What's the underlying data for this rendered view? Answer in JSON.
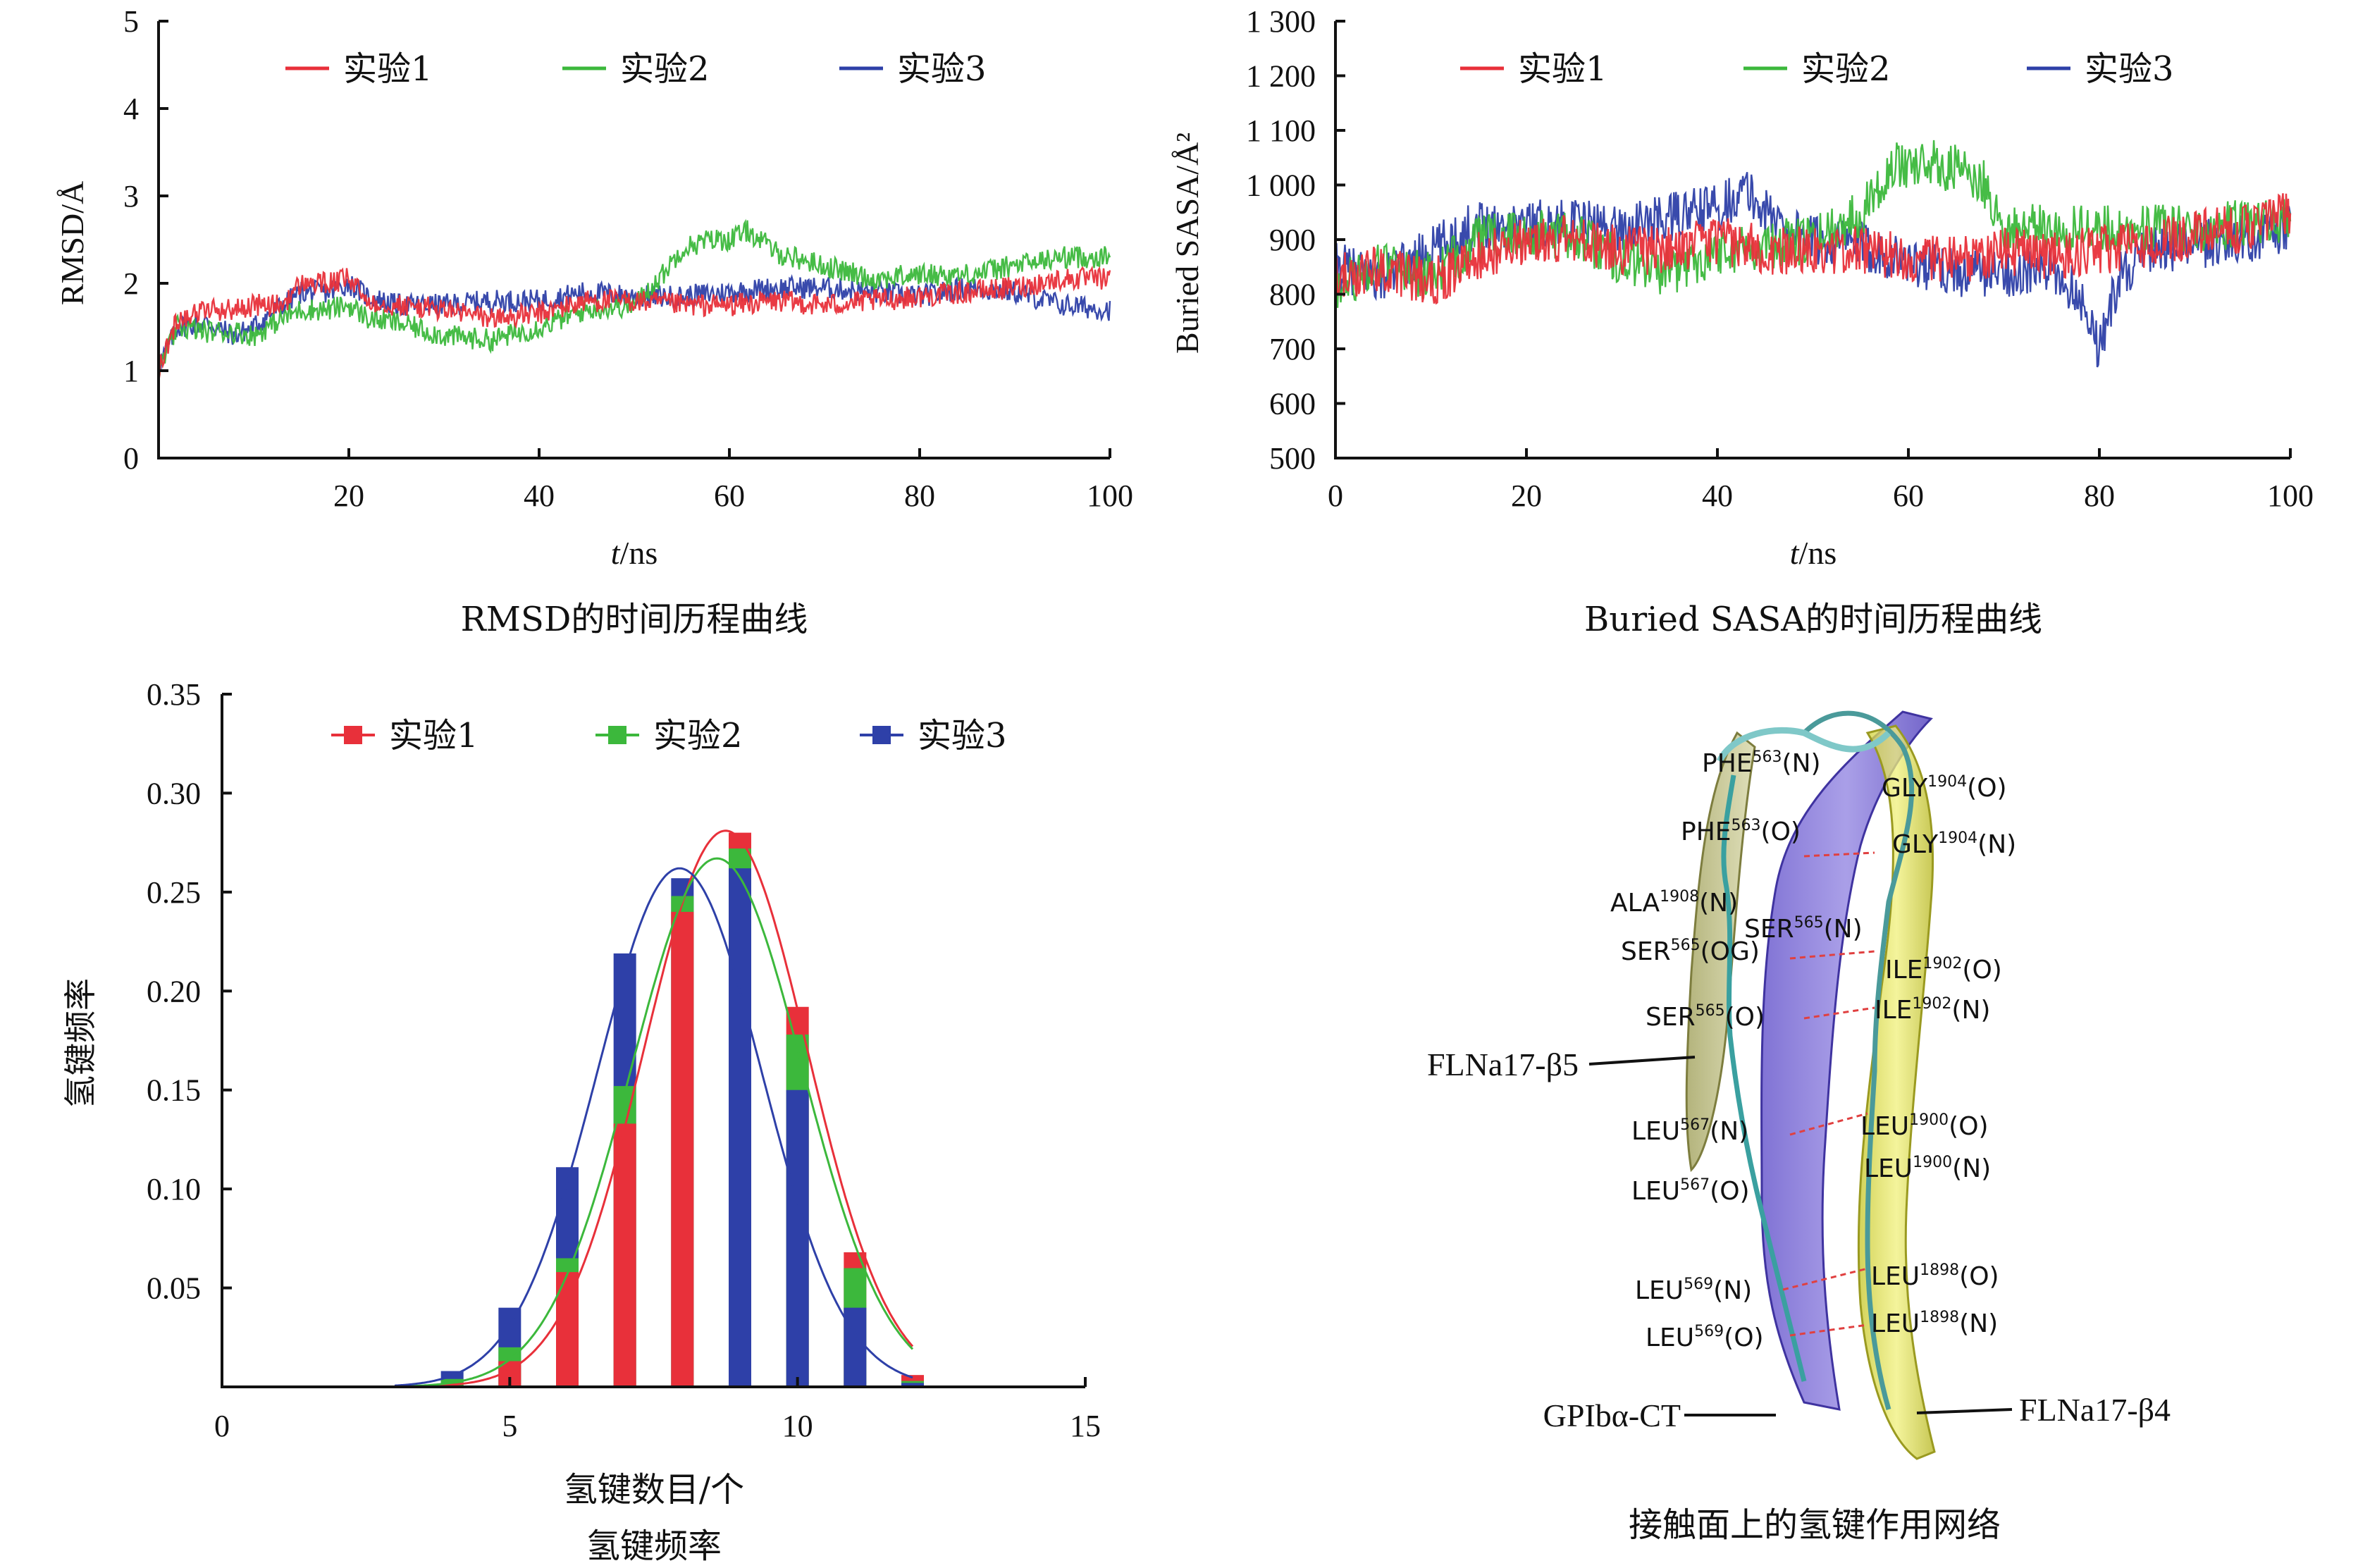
{
  "colors": {
    "exp1": "#e8303a",
    "exp2": "#3cb83c",
    "exp3": "#2e40a8"
  },
  "chart_data": [
    {
      "id": "rmsd",
      "type": "line",
      "caption": "RMSD的时间历程曲线",
      "xlabel_italic": "t",
      "xlabel_unit": "/ns",
      "ylabel": "RMSD/Å",
      "xlim": [
        0,
        100
      ],
      "ylim": [
        0,
        5
      ],
      "xticks": [
        20,
        40,
        60,
        80,
        100
      ],
      "yticks": [
        0,
        1,
        2,
        3,
        4,
        5
      ],
      "legend": [
        "实验1",
        "实验2",
        "实验3"
      ],
      "series": [
        {
          "name": "实验1",
          "x": [
            0,
            2,
            5,
            8,
            10,
            13,
            15,
            18,
            20,
            22,
            25,
            30,
            35,
            40,
            45,
            50,
            55,
            60,
            65,
            70,
            75,
            80,
            85,
            90,
            95,
            100
          ],
          "y": [
            1.0,
            1.6,
            1.7,
            1.7,
            1.75,
            1.75,
            2.0,
            2.0,
            2.05,
            1.8,
            1.75,
            1.7,
            1.6,
            1.65,
            1.8,
            1.8,
            1.75,
            1.75,
            1.8,
            1.75,
            1.8,
            1.85,
            1.9,
            1.95,
            2.05,
            2.05
          ]
        },
        {
          "name": "实验2",
          "x": [
            0,
            2,
            5,
            8,
            10,
            13,
            15,
            18,
            20,
            22,
            25,
            30,
            35,
            40,
            45,
            50,
            53,
            55,
            58,
            60,
            62,
            65,
            70,
            75,
            80,
            85,
            90,
            95,
            100
          ],
          "y": [
            1.0,
            1.5,
            1.45,
            1.45,
            1.4,
            1.6,
            1.7,
            1.7,
            1.75,
            1.6,
            1.55,
            1.4,
            1.35,
            1.5,
            1.7,
            1.75,
            2.1,
            2.4,
            2.5,
            2.5,
            2.6,
            2.35,
            2.2,
            2.05,
            2.1,
            2.1,
            2.2,
            2.3,
            2.3
          ]
        },
        {
          "name": "实验3",
          "x": [
            0,
            2,
            5,
            8,
            10,
            13,
            15,
            18,
            20,
            22,
            25,
            30,
            35,
            40,
            45,
            50,
            55,
            60,
            65,
            70,
            75,
            80,
            85,
            90,
            95,
            100
          ],
          "y": [
            1.05,
            1.5,
            1.55,
            1.4,
            1.5,
            1.75,
            1.9,
            1.9,
            2.0,
            1.85,
            1.75,
            1.75,
            1.8,
            1.8,
            1.9,
            1.85,
            1.85,
            1.9,
            1.95,
            1.95,
            1.9,
            1.85,
            1.95,
            1.9,
            1.75,
            1.7
          ]
        }
      ]
    },
    {
      "id": "sasa",
      "type": "line",
      "caption": "Buried SASA的时间历程曲线",
      "xlabel_italic": "t",
      "xlabel_unit": "/ns",
      "ylabel": "Buried SASA/Å²",
      "xlim": [
        0,
        100
      ],
      "ylim": [
        500,
        1300
      ],
      "xticks": [
        0,
        20,
        40,
        60,
        80,
        100
      ],
      "yticks": [
        500,
        600,
        700,
        800,
        900,
        1000,
        1100,
        1200,
        1300
      ],
      "yticklabels": [
        "500",
        "600",
        "700",
        "800",
        "900",
        "1 000",
        "1 100",
        "1 200",
        "1 300"
      ],
      "legend": [
        "实验1",
        "实验2",
        "实验3"
      ],
      "series": [
        {
          "name": "实验1",
          "x": [
            0,
            5,
            10,
            15,
            20,
            25,
            30,
            35,
            40,
            45,
            50,
            55,
            60,
            65,
            70,
            75,
            80,
            85,
            90,
            95,
            100
          ],
          "y": [
            830,
            850,
            820,
            870,
            900,
            900,
            880,
            880,
            900,
            880,
            880,
            880,
            870,
            860,
            880,
            870,
            880,
            890,
            910,
            920,
            950
          ]
        },
        {
          "name": "实验2",
          "x": [
            0,
            5,
            10,
            15,
            20,
            25,
            30,
            35,
            40,
            45,
            50,
            55,
            58,
            60,
            62,
            65,
            68,
            70,
            75,
            80,
            85,
            90,
            95,
            100
          ],
          "y": [
            810,
            860,
            830,
            900,
            910,
            910,
            860,
            840,
            880,
            890,
            900,
            950,
            1030,
            1040,
            1040,
            1030,
            1000,
            920,
            920,
            920,
            920,
            920,
            930,
            930
          ]
        },
        {
          "name": "实验3",
          "x": [
            0,
            5,
            10,
            15,
            20,
            25,
            30,
            35,
            40,
            43,
            45,
            50,
            55,
            60,
            65,
            70,
            75,
            78,
            80,
            82,
            85,
            90,
            95,
            100
          ],
          "y": [
            850,
            830,
            880,
            930,
            930,
            930,
            920,
            940,
            960,
            990,
            950,
            900,
            890,
            860,
            840,
            840,
            840,
            800,
            700,
            830,
            880,
            890,
            900,
            920
          ]
        }
      ]
    },
    {
      "id": "hbond",
      "type": "bar",
      "caption": "氢键频率",
      "xlabel": "氢键数目/个",
      "ylabel": "氢键频率",
      "xlim": [
        0,
        15
      ],
      "ylim": [
        0,
        0.35
      ],
      "xticks": [
        0,
        5,
        10,
        15
      ],
      "yticks": [
        0.05,
        0.1,
        0.15,
        0.2,
        0.25,
        0.3,
        0.35
      ],
      "yticklabels": [
        "0.05",
        "0.10",
        "0.15",
        "0.20",
        "0.25",
        "0.30",
        "0.35"
      ],
      "legend": [
        "实验1",
        "实验2",
        "实验3"
      ],
      "categories": [
        4,
        5,
        6,
        7,
        8,
        9,
        10,
        11,
        12
      ],
      "series": [
        {
          "name": "实验1",
          "values": [
            0.0,
            0.013,
            0.058,
            0.133,
            0.24,
            0.28,
            0.192,
            0.068,
            0.006
          ]
        },
        {
          "name": "实验2",
          "values": [
            0.004,
            0.02,
            0.065,
            0.152,
            0.248,
            0.272,
            0.178,
            0.06,
            0.003
          ]
        },
        {
          "name": "实验3",
          "values": [
            0.008,
            0.04,
            0.111,
            0.219,
            0.257,
            0.262,
            0.15,
            0.04,
            0.002
          ]
        }
      ],
      "fits": [
        {
          "name": "实验1",
          "mu": 8.75,
          "sigma": 1.42,
          "peak": 0.281
        },
        {
          "name": "实验2",
          "mu": 8.6,
          "sigma": 1.48,
          "peak": 0.267
        },
        {
          "name": "实验3",
          "mu": 7.95,
          "sigma": 1.43,
          "peak": 0.262
        }
      ]
    }
  ],
  "structure": {
    "caption": "接触面上的氢键作用网络",
    "callouts": {
      "b5": "FLNa17-β5",
      "ct": "GPIbα-CT",
      "b4": "FLNa17-β4"
    },
    "left_labels": [
      {
        "res": "PHE",
        "num": "563",
        "atom": "(N)"
      },
      {
        "res": "PHE",
        "num": "563",
        "atom": "(O)"
      },
      {
        "res": "ALA",
        "num": "1908",
        "atom": "(N)"
      },
      {
        "res": "SER",
        "num": "565",
        "atom": "(OG)"
      },
      {
        "res": "SER",
        "num": "565",
        "atom": "(O)"
      },
      {
        "res": "LEU",
        "num": "567",
        "atom": "(N)"
      },
      {
        "res": "LEU",
        "num": "567",
        "atom": "(O)"
      },
      {
        "res": "LEU",
        "num": "569",
        "atom": "(N)"
      },
      {
        "res": "LEU",
        "num": "569",
        "atom": "(O)"
      }
    ],
    "mid_labels": [
      {
        "res": "SER",
        "num": "565",
        "atom": "(N)"
      }
    ],
    "right_labels": [
      {
        "res": "GLY",
        "num": "1904",
        "atom": "(O)"
      },
      {
        "res": "GLY",
        "num": "1904",
        "atom": "(N)"
      },
      {
        "res": "ILE",
        "num": "1902",
        "atom": "(O)"
      },
      {
        "res": "ILE",
        "num": "1902",
        "atom": "(N)"
      },
      {
        "res": "LEU",
        "num": "1900",
        "atom": "(O)"
      },
      {
        "res": "LEU",
        "num": "1900",
        "atom": "(N)"
      },
      {
        "res": "LEU",
        "num": "1898",
        "atom": "(O)"
      },
      {
        "res": "LEU",
        "num": "1898",
        "atom": "(N)"
      }
    ]
  }
}
